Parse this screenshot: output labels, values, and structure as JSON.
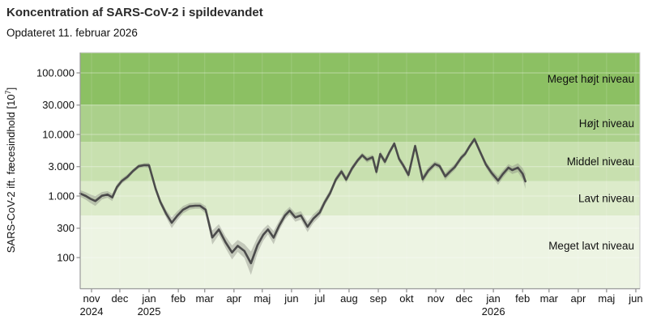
{
  "header": {
    "title": "Koncentration af SARS-CoV-2 i spildevandet",
    "subtitle": "Opdateret 11. februar 2026"
  },
  "chart_data": {
    "type": "line",
    "title": "Koncentration af SARS-CoV-2 i spildevandet",
    "subtitle": "Opdateret 11. februar 2026",
    "xlabel": "",
    "ylabel_main": "SARS-CoV-2 ift. fæcesindhold [10",
    "ylabel_sup": "7",
    "ylabel_close": "]",
    "y_scale": "log",
    "ylim": [
      32,
      213000
    ],
    "grid": true,
    "y_ticks": [
      {
        "value": 100000,
        "label": "100.000"
      },
      {
        "value": 30000,
        "label": "30.000"
      },
      {
        "value": 10000,
        "label": "10.000"
      },
      {
        "value": 3000,
        "label": "3.000"
      },
      {
        "value": 1000,
        "label": "1.000"
      },
      {
        "value": 300,
        "label": "300"
      },
      {
        "value": 100,
        "label": "100"
      }
    ],
    "x_ticks": [
      {
        "month": "2024-11",
        "label": "nov",
        "year": "2024"
      },
      {
        "month": "2024-12",
        "label": "dec"
      },
      {
        "month": "2025-01",
        "label": "jan",
        "year": "2025"
      },
      {
        "month": "2025-02",
        "label": "feb"
      },
      {
        "month": "2025-03",
        "label": "mar"
      },
      {
        "month": "2025-04",
        "label": "apr"
      },
      {
        "month": "2025-05",
        "label": "maj"
      },
      {
        "month": "2025-06",
        "label": "jun"
      },
      {
        "month": "2025-07",
        "label": "jul"
      },
      {
        "month": "2025-08",
        "label": "aug"
      },
      {
        "month": "2025-09",
        "label": "sep"
      },
      {
        "month": "2025-10",
        "label": "okt"
      },
      {
        "month": "2025-11",
        "label": "nov"
      },
      {
        "month": "2025-12",
        "label": "dec"
      },
      {
        "month": "2026-01",
        "label": "jan",
        "year": "2026"
      },
      {
        "month": "2026-02",
        "label": "feb"
      },
      {
        "month": "2026-03",
        "label": "mar"
      },
      {
        "month": "2026-04",
        "label": "apr"
      },
      {
        "month": "2026-05",
        "label": "maj"
      },
      {
        "month": "2026-06",
        "label": "jun"
      }
    ],
    "bands": [
      {
        "label": "Meget højt niveau",
        "color": "#8cc063",
        "from": 30000,
        "to": null
      },
      {
        "label": "Højt niveau",
        "color": "#abd08b",
        "from": 7600,
        "to": 30000
      },
      {
        "label": "Middel niveau",
        "color": "#c8e0af",
        "from": 1750,
        "to": 7600
      },
      {
        "label": "Lavt niveau",
        "color": "#dcebca",
        "from": 480,
        "to": 1750
      },
      {
        "label": "Meget lavt niveau",
        "color": "#edf4e3",
        "from": null,
        "to": 480,
        "label_y": 308
      }
    ],
    "line_color": "#4b4b4b",
    "ribbon_color": "#7f8078",
    "points_format": [
      "date",
      "value",
      "uncertainty_factor"
    ],
    "points": [
      [
        "2024-10-20",
        1100,
        1.13
      ],
      [
        "2024-10-26",
        1000,
        1.15
      ],
      [
        "2024-10-31",
        900,
        1.17
      ],
      [
        "2024-11-05",
        830,
        1.2
      ],
      [
        "2024-11-12",
        1010,
        1.15
      ],
      [
        "2024-11-18",
        1060,
        1.13
      ],
      [
        "2024-11-23",
        950,
        1.15
      ],
      [
        "2024-11-28",
        1400,
        1.12
      ],
      [
        "2024-12-03",
        1750,
        1.1
      ],
      [
        "2024-12-09",
        2050,
        1.1
      ],
      [
        "2024-12-15",
        2550,
        1.08
      ],
      [
        "2024-12-21",
        3050,
        1.08
      ],
      [
        "2024-12-27",
        3170,
        1.08
      ],
      [
        "2025-01-01",
        3150,
        1.1
      ],
      [
        "2025-01-08",
        1300,
        1.1
      ],
      [
        "2025-01-13",
        800,
        1.12
      ],
      [
        "2025-01-19",
        520,
        1.15
      ],
      [
        "2025-01-25",
        368,
        1.22
      ],
      [
        "2025-01-31",
        480,
        1.18
      ],
      [
        "2025-02-06",
        600,
        1.15
      ],
      [
        "2025-02-13",
        680,
        1.13
      ],
      [
        "2025-02-19",
        695,
        1.12
      ],
      [
        "2025-02-24",
        695,
        1.12
      ],
      [
        "2025-03-02",
        600,
        1.15
      ],
      [
        "2025-03-09",
        212,
        1.3
      ],
      [
        "2025-03-16",
        286,
        1.22
      ],
      [
        "2025-03-23",
        178,
        1.25
      ],
      [
        "2025-03-30",
        121,
        1.3
      ],
      [
        "2025-04-05",
        155,
        1.25
      ],
      [
        "2025-04-12",
        128,
        1.3
      ],
      [
        "2025-04-19",
        81,
        1.55
      ],
      [
        "2025-04-26",
        160,
        1.35
      ],
      [
        "2025-05-02",
        234,
        1.25
      ],
      [
        "2025-05-07",
        286,
        1.2
      ],
      [
        "2025-05-13",
        211,
        1.28
      ],
      [
        "2025-05-19",
        333,
        1.2
      ],
      [
        "2025-05-25",
        480,
        1.17
      ],
      [
        "2025-05-30",
        580,
        1.15
      ],
      [
        "2025-06-05",
        450,
        1.18
      ],
      [
        "2025-06-11",
        483,
        1.17
      ],
      [
        "2025-06-18",
        316,
        1.22
      ],
      [
        "2025-06-24",
        427,
        1.18
      ],
      [
        "2025-07-01",
        540,
        1.16
      ],
      [
        "2025-07-06",
        785,
        1.14
      ],
      [
        "2025-07-12",
        1120,
        1.13
      ],
      [
        "2025-07-18",
        1850,
        1.12
      ],
      [
        "2025-07-24",
        2500,
        1.11
      ],
      [
        "2025-07-29",
        1850,
        1.13
      ],
      [
        "2025-08-04",
        2780,
        1.11
      ],
      [
        "2025-08-10",
        3770,
        1.1
      ],
      [
        "2025-08-15",
        4600,
        1.1
      ],
      [
        "2025-08-20",
        3880,
        1.11
      ],
      [
        "2025-08-26",
        4280,
        1.1
      ],
      [
        "2025-08-30",
        2460,
        1.14
      ],
      [
        "2025-09-03",
        4800,
        1.12
      ],
      [
        "2025-09-08",
        3600,
        1.13
      ],
      [
        "2025-09-13",
        5200,
        1.11
      ],
      [
        "2025-09-18",
        7100,
        1.1
      ],
      [
        "2025-09-23",
        4000,
        1.11
      ],
      [
        "2025-09-27",
        3230,
        1.12
      ],
      [
        "2025-10-03",
        2200,
        1.14
      ],
      [
        "2025-10-10",
        6500,
        1.1
      ],
      [
        "2025-10-18",
        1870,
        1.16
      ],
      [
        "2025-10-24",
        2600,
        1.13
      ],
      [
        "2025-10-31",
        3300,
        1.11
      ],
      [
        "2025-11-05",
        3070,
        1.11
      ],
      [
        "2025-11-11",
        2080,
        1.14
      ],
      [
        "2025-11-16",
        2500,
        1.13
      ],
      [
        "2025-11-21",
        2950,
        1.12
      ],
      [
        "2025-11-28",
        4200,
        1.11
      ],
      [
        "2025-12-02",
        4840,
        1.1
      ],
      [
        "2025-12-07",
        6500,
        1.09
      ],
      [
        "2025-12-12",
        8400,
        1.09
      ],
      [
        "2025-12-18",
        5200,
        1.11
      ],
      [
        "2025-12-24",
        3260,
        1.12
      ],
      [
        "2025-12-30",
        2380,
        1.14
      ],
      [
        "2026-01-06",
        1780,
        1.17
      ],
      [
        "2026-01-11",
        2270,
        1.15
      ],
      [
        "2026-01-17",
        2890,
        1.14
      ],
      [
        "2026-01-21",
        2640,
        1.16
      ],
      [
        "2026-01-27",
        2890,
        1.18
      ],
      [
        "2026-02-01",
        2300,
        1.24
      ],
      [
        "2026-02-04",
        1730,
        1.32
      ]
    ]
  }
}
